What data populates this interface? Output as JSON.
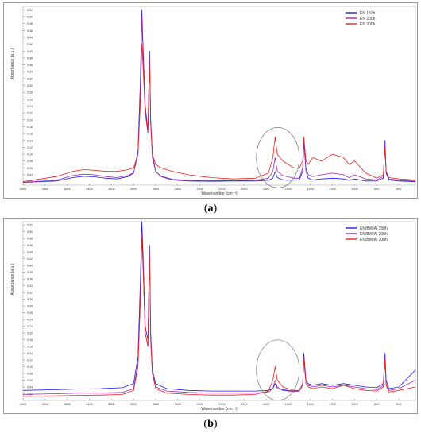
{
  "chart_data": [
    {
      "type": "line",
      "panel_label": "a",
      "xlabel": "Wavenumber (cm⁻¹)",
      "ylabel": "Absorbance (a.u.)",
      "xlim": [
        4000,
        450
      ],
      "ylim": [
        0.01,
        0.53
      ],
      "x_reversed": true,
      "x_ticks": [
        4000,
        3800,
        3600,
        3400,
        3200,
        3000,
        2800,
        2600,
        2400,
        2200,
        2000,
        1800,
        1600,
        1400,
        1200,
        1000,
        800,
        600
      ],
      "y_ticks": [
        0.02,
        0.04,
        0.06,
        0.08,
        0.1,
        0.12,
        0.14,
        0.16,
        0.18,
        0.2,
        0.22,
        0.24,
        0.26,
        0.28,
        0.3,
        0.32,
        0.34,
        0.36,
        0.38,
        0.4,
        0.42,
        0.44,
        0.46,
        0.48,
        0.5,
        0.52
      ],
      "legend_position": "top-right",
      "annotation": "ellipse around 1800-1600 cm-1 region",
      "series": [
        {
          "name": "EN  150h",
          "color": "#1e1ee6",
          "x": [
            4000,
            3700,
            3550,
            3450,
            3350,
            3250,
            3150,
            3050,
            3000,
            2960,
            2940,
            2925,
            2915,
            2895,
            2870,
            2855,
            2845,
            2830,
            2800,
            2750,
            2650,
            2500,
            2300,
            2100,
            1900,
            1780,
            1740,
            1720,
            1700,
            1650,
            1600,
            1550,
            1500,
            1470,
            1460,
            1440,
            1420,
            1380,
            1300,
            1200,
            1100,
            1050,
            1000,
            900,
            800,
            740,
            725,
            715,
            690,
            600,
            450
          ],
          "y": [
            0.018,
            0.022,
            0.032,
            0.036,
            0.034,
            0.03,
            0.028,
            0.035,
            0.045,
            0.11,
            0.3,
            0.52,
            0.42,
            0.24,
            0.17,
            0.4,
            0.2,
            0.1,
            0.05,
            0.035,
            0.025,
            0.022,
            0.021,
            0.022,
            0.022,
            0.024,
            0.03,
            0.05,
            0.032,
            0.025,
            0.024,
            0.024,
            0.026,
            0.05,
            0.14,
            0.05,
            0.03,
            0.025,
            0.028,
            0.03,
            0.028,
            0.024,
            0.028,
            0.022,
            0.022,
            0.03,
            0.14,
            0.045,
            0.025,
            0.022,
            0.02
          ]
        },
        {
          "name": "EN  200h",
          "color": "#9b2bb0",
          "x": [
            4000,
            3700,
            3550,
            3450,
            3350,
            3250,
            3150,
            3050,
            3000,
            2960,
            2940,
            2925,
            2915,
            2895,
            2870,
            2855,
            2845,
            2830,
            2800,
            2750,
            2650,
            2500,
            2300,
            2100,
            1900,
            1780,
            1740,
            1720,
            1700,
            1650,
            1600,
            1550,
            1500,
            1470,
            1460,
            1440,
            1420,
            1380,
            1300,
            1200,
            1100,
            1050,
            1000,
            900,
            800,
            740,
            725,
            715,
            690,
            600,
            450
          ],
          "y": [
            0.018,
            0.024,
            0.038,
            0.042,
            0.04,
            0.035,
            0.032,
            0.038,
            0.046,
            0.1,
            0.27,
            0.5,
            0.4,
            0.22,
            0.16,
            0.38,
            0.19,
            0.09,
            0.05,
            0.036,
            0.027,
            0.024,
            0.023,
            0.023,
            0.024,
            0.03,
            0.05,
            0.09,
            0.05,
            0.038,
            0.034,
            0.03,
            0.03,
            0.06,
            0.13,
            0.06,
            0.04,
            0.035,
            0.04,
            0.045,
            0.04,
            0.032,
            0.04,
            0.028,
            0.025,
            0.035,
            0.13,
            0.05,
            0.028,
            0.024,
            0.022
          ]
        },
        {
          "name": "EN  300h",
          "color": "#e8231f",
          "x": [
            4000,
            3700,
            3550,
            3450,
            3350,
            3250,
            3150,
            3050,
            3000,
            2960,
            2940,
            2925,
            2915,
            2895,
            2870,
            2855,
            2845,
            2830,
            2800,
            2750,
            2650,
            2500,
            2300,
            2100,
            1900,
            1780,
            1740,
            1720,
            1700,
            1650,
            1600,
            1550,
            1500,
            1470,
            1460,
            1440,
            1420,
            1380,
            1300,
            1200,
            1100,
            1050,
            1000,
            900,
            800,
            740,
            725,
            715,
            690,
            600,
            450
          ],
          "y": [
            0.02,
            0.035,
            0.05,
            0.055,
            0.053,
            0.05,
            0.05,
            0.055,
            0.06,
            0.1,
            0.24,
            0.42,
            0.36,
            0.22,
            0.17,
            0.36,
            0.19,
            0.1,
            0.07,
            0.06,
            0.05,
            0.04,
            0.032,
            0.028,
            0.03,
            0.045,
            0.09,
            0.15,
            0.1,
            0.08,
            0.07,
            0.06,
            0.06,
            0.08,
            0.15,
            0.08,
            0.07,
            0.09,
            0.08,
            0.1,
            0.09,
            0.07,
            0.08,
            0.045,
            0.03,
            0.04,
            0.12,
            0.05,
            0.032,
            0.028,
            0.025
          ]
        }
      ]
    },
    {
      "type": "line",
      "panel_label": "b",
      "xlabel": "Wavenumber (cm⁻¹)",
      "ylabel": "Absorbance (a.u.)",
      "xlim": [
        4000,
        450
      ],
      "ylim": [
        0.0,
        0.53
      ],
      "x_reversed": true,
      "x_ticks": [
        4000,
        3800,
        3600,
        3400,
        3200,
        3000,
        2800,
        2600,
        2400,
        2200,
        2000,
        1800,
        1600,
        1400,
        1200,
        1000,
        800,
        600
      ],
      "y_ticks": [
        0.02,
        0.04,
        0.06,
        0.08,
        0.1,
        0.12,
        0.14,
        0.16,
        0.18,
        0.2,
        0.22,
        0.24,
        0.26,
        0.28,
        0.3,
        0.32,
        0.34,
        0.36,
        0.38,
        0.4,
        0.42,
        0.44,
        0.46,
        0.48,
        0.5,
        0.52
      ],
      "legend_position": "top-right",
      "annotation": "ellipse around 1800-1600 cm-1 region",
      "series": [
        {
          "name": "EN/BW/Al 150h",
          "color": "#1e1ee6",
          "x": [
            4000,
            3700,
            3500,
            3300,
            3100,
            3000,
            2960,
            2940,
            2925,
            2915,
            2895,
            2870,
            2855,
            2845,
            2830,
            2800,
            2700,
            2500,
            2300,
            2100,
            1900,
            1780,
            1740,
            1720,
            1700,
            1650,
            1600,
            1550,
            1500,
            1470,
            1460,
            1440,
            1420,
            1380,
            1300,
            1200,
            1100,
            1000,
            900,
            800,
            740,
            725,
            715,
            690,
            600,
            450
          ],
          "y": [
            0.03,
            0.032,
            0.034,
            0.035,
            0.038,
            0.05,
            0.13,
            0.34,
            0.53,
            0.44,
            0.22,
            0.18,
            0.46,
            0.2,
            0.09,
            0.05,
            0.035,
            0.03,
            0.028,
            0.028,
            0.028,
            0.03,
            0.035,
            0.05,
            0.035,
            0.032,
            0.03,
            0.028,
            0.03,
            0.05,
            0.14,
            0.06,
            0.05,
            0.045,
            0.05,
            0.045,
            0.05,
            0.045,
            0.04,
            0.038,
            0.05,
            0.14,
            0.06,
            0.035,
            0.04,
            0.09
          ]
        },
        {
          "name": "EN/BW/Al 200h",
          "color": "#9b2bb0",
          "x": [
            4000,
            3700,
            3500,
            3300,
            3100,
            3000,
            2960,
            2940,
            2925,
            2915,
            2895,
            2870,
            2855,
            2845,
            2830,
            2800,
            2700,
            2500,
            2300,
            2100,
            1900,
            1780,
            1740,
            1720,
            1700,
            1650,
            1600,
            1550,
            1500,
            1470,
            1460,
            1440,
            1420,
            1380,
            1300,
            1200,
            1100,
            1000,
            900,
            800,
            740,
            725,
            715,
            690,
            600,
            450
          ],
          "y": [
            0.018,
            0.02,
            0.022,
            0.022,
            0.024,
            0.035,
            0.11,
            0.3,
            0.5,
            0.41,
            0.2,
            0.16,
            0.44,
            0.18,
            0.08,
            0.04,
            0.028,
            0.024,
            0.022,
            0.022,
            0.022,
            0.025,
            0.035,
            0.06,
            0.04,
            0.03,
            0.028,
            0.026,
            0.028,
            0.045,
            0.13,
            0.055,
            0.045,
            0.04,
            0.045,
            0.04,
            0.045,
            0.04,
            0.035,
            0.032,
            0.045,
            0.13,
            0.05,
            0.03,
            0.035,
            0.06
          ]
        },
        {
          "name": "EN/BW/Al 300h",
          "color": "#e8231f",
          "x": [
            4000,
            3700,
            3500,
            3300,
            3100,
            3000,
            2960,
            2940,
            2925,
            2915,
            2895,
            2870,
            2855,
            2845,
            2830,
            2800,
            2700,
            2500,
            2300,
            2100,
            1900,
            1780,
            1740,
            1720,
            1700,
            1650,
            1600,
            1550,
            1500,
            1470,
            1460,
            1440,
            1420,
            1380,
            1300,
            1200,
            1100,
            1000,
            900,
            800,
            740,
            725,
            715,
            690,
            600,
            450
          ],
          "y": [
            0.012,
            0.014,
            0.015,
            0.016,
            0.018,
            0.03,
            0.1,
            0.28,
            0.48,
            0.4,
            0.2,
            0.16,
            0.43,
            0.18,
            0.08,
            0.035,
            0.022,
            0.018,
            0.016,
            0.016,
            0.018,
            0.028,
            0.06,
            0.1,
            0.06,
            0.04,
            0.035,
            0.03,
            0.03,
            0.05,
            0.12,
            0.05,
            0.04,
            0.035,
            0.04,
            0.035,
            0.045,
            0.035,
            0.03,
            0.028,
            0.04,
            0.12,
            0.045,
            0.025,
            0.03,
            0.04
          ]
        }
      ]
    }
  ],
  "captions": {
    "a": "(a)",
    "b": "(b)"
  }
}
